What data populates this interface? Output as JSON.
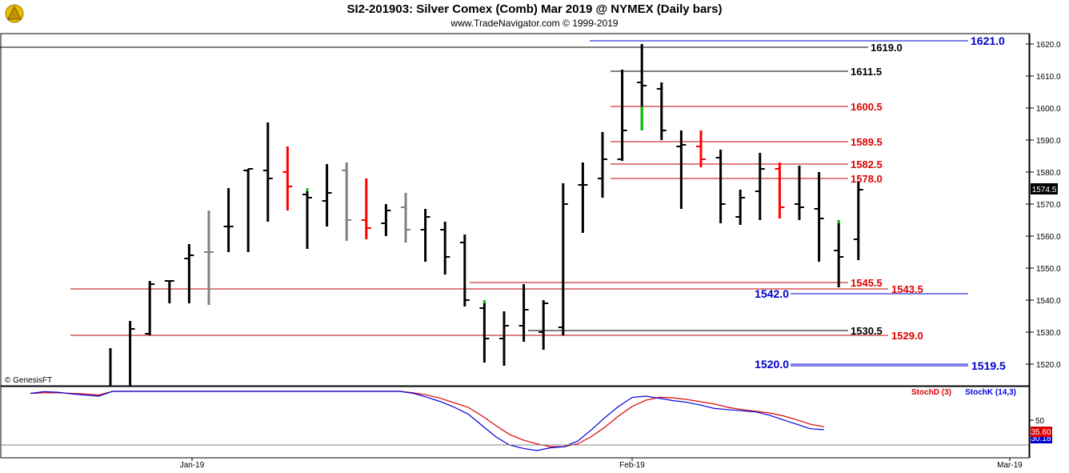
{
  "header": {
    "title": "SI2-201903:  Silver Comex (Comb) Mar 2019 @ NYMEX  (Daily bars)",
    "subtitle": "www.TradeNavigator.com © 1999-2019",
    "watermark": "© GenesisFT"
  },
  "colors": {
    "up_bar": "#000000",
    "down_bar": "#ff0000",
    "neutral_bar": "#808080",
    "limit_bar": "#00cc00",
    "black_line": "#000000",
    "red_line": "#c00000",
    "blue_line": "#0000cc",
    "stochD": "#dd0000",
    "stochK": "#0000dd",
    "last_price_bg": "#000000"
  },
  "chart_data": [
    {
      "type": "ohlc",
      "title": "SI2-201903:  Silver Comex (Comb) Mar 2019 @ NYMEX  (Daily bars)",
      "ylim": [
        1513,
        1625
      ],
      "yticks": [
        1520.0,
        1530.0,
        1540.0,
        1550.0,
        1560.0,
        1570.0,
        1580.0,
        1590.0,
        1600.0,
        1610.0,
        1620.0
      ],
      "xtick_labels": [
        {
          "label": "Jan-19",
          "bar": 8
        },
        {
          "label": "Feb-19",
          "bar": 30
        },
        {
          "label": "Mar-19",
          "bar": 51
        }
      ],
      "last_price": "1574.5",
      "bars": [
        {
          "o": null,
          "h": 1525.0,
          "l": 1513.0,
          "c": null,
          "color": "black"
        },
        {
          "o": 1512.0,
          "h": 1533.5,
          "l": 1512.0,
          "c": 1531.0,
          "color": "black"
        },
        {
          "o": 1529.5,
          "h": 1546.0,
          "l": 1529.0,
          "c": 1545.0,
          "color": "black"
        },
        {
          "o": 1546.0,
          "h": 1546.0,
          "l": 1539.0,
          "c": 1546.0,
          "color": "black"
        },
        {
          "o": 1553.0,
          "h": 1557.5,
          "l": 1539.0,
          "c": 1554.0,
          "color": "black"
        },
        {
          "o": 1555.0,
          "h": 1568.0,
          "l": 1538.5,
          "c": 1555.0,
          "color": "gray"
        },
        {
          "o": 1563.0,
          "h": 1575.0,
          "l": 1555.0,
          "c": 1563.0,
          "color": "black"
        },
        {
          "o": 1580.5,
          "h": 1581.0,
          "l": 1555.0,
          "c": 1581.0,
          "color": "black"
        },
        {
          "o": 1580.5,
          "h": 1595.5,
          "l": 1564.5,
          "c": 1578.0,
          "color": "black"
        },
        {
          "o": 1580.0,
          "h": 1588.0,
          "l": 1568.0,
          "c": 1575.5,
          "color": "red"
        },
        {
          "o": 1573.0,
          "h": 1575.0,
          "l": 1556.0,
          "c": 1572.0,
          "color": "black",
          "high_mark": "green"
        },
        {
          "o": 1571.0,
          "h": 1582.5,
          "l": 1563.0,
          "c": 1573.5,
          "color": "black"
        },
        {
          "o": 1580.5,
          "h": 1583.0,
          "l": 1558.5,
          "c": 1565.0,
          "color": "gray"
        },
        {
          "o": 1565.0,
          "h": 1578.0,
          "l": 1559.0,
          "c": 1562.5,
          "color": "red"
        },
        {
          "o": 1564.0,
          "h": 1570.0,
          "l": 1560.0,
          "c": 1568.0,
          "color": "black"
        },
        {
          "o": 1569.0,
          "h": 1573.5,
          "l": 1558.0,
          "c": 1562.0,
          "color": "gray"
        },
        {
          "o": 1562.0,
          "h": 1568.5,
          "l": 1552.0,
          "c": 1566.0,
          "color": "black"
        },
        {
          "o": 1562.0,
          "h": 1564.5,
          "l": 1548.0,
          "c": 1553.5,
          "color": "black"
        },
        {
          "o": 1558.0,
          "h": 1560.5,
          "l": 1538.0,
          "c": 1540.0,
          "color": "black"
        },
        {
          "o": 1537.5,
          "h": 1540.0,
          "l": 1520.5,
          "c": 1528.0,
          "color": "black",
          "high_mark": "green"
        },
        {
          "o": 1528.0,
          "h": 1536.5,
          "l": 1519.5,
          "c": 1532.0,
          "color": "black"
        },
        {
          "o": 1532.0,
          "h": 1545.0,
          "l": 1527.0,
          "c": 1537.0,
          "color": "black"
        },
        {
          "o": 1530.0,
          "h": 1540.0,
          "l": 1524.5,
          "c": 1539.0,
          "color": "black"
        },
        {
          "o": 1531.5,
          "h": 1576.5,
          "l": 1529.0,
          "c": 1570.0,
          "color": "black"
        },
        {
          "o": 1576.0,
          "h": 1583.0,
          "l": 1561.0,
          "c": 1576.0,
          "color": "black"
        },
        {
          "o": 1578.0,
          "h": 1592.5,
          "l": 1572.0,
          "c": 1584.0,
          "color": "black"
        },
        {
          "o": 1584.0,
          "h": 1612.0,
          "l": 1583.5,
          "c": 1593.0,
          "color": "black"
        },
        {
          "o": 1608.0,
          "h": 1620.0,
          "l": 1593.0,
          "c": 1607.0,
          "color": "black",
          "low_mark_top": 1600.5
        },
        {
          "o": 1606.0,
          "h": 1608.0,
          "l": 1590.0,
          "c": 1593.0,
          "color": "black"
        },
        {
          "o": 1588.0,
          "h": 1593.0,
          "l": 1568.5,
          "c": 1588.5,
          "color": "black"
        },
        {
          "o": 1588.0,
          "h": 1593.0,
          "l": 1581.5,
          "c": 1584.0,
          "color": "red"
        },
        {
          "o": 1584.5,
          "h": 1587.0,
          "l": 1564.0,
          "c": 1570.0,
          "color": "black"
        },
        {
          "o": 1566.0,
          "h": 1574.5,
          "l": 1563.5,
          "c": 1572.0,
          "color": "black"
        },
        {
          "o": 1574.0,
          "h": 1586.0,
          "l": 1565.0,
          "c": 1581.0,
          "color": "black"
        },
        {
          "o": 1581.0,
          "h": 1583.0,
          "l": 1565.5,
          "c": 1569.0,
          "color": "red"
        },
        {
          "o": 1570.0,
          "h": 1582.0,
          "l": 1565.0,
          "c": 1569.0,
          "color": "black"
        },
        {
          "o": 1568.5,
          "h": 1580.0,
          "l": 1552.0,
          "c": 1565.5,
          "color": "black"
        },
        {
          "o": 1555.5,
          "h": 1565.0,
          "l": 1544.0,
          "c": 1553.5,
          "color": "black",
          "high_mark": "green"
        },
        {
          "o": 1559.0,
          "h": 1577.0,
          "l": 1552.5,
          "c": 1574.5,
          "color": "black"
        }
      ],
      "levels": [
        {
          "label": "1621.0",
          "value": 1621.0,
          "color": "blue",
          "label_side": "right"
        },
        {
          "label": "1619.0",
          "value": 1619.0,
          "color": "black",
          "label_side": "right"
        },
        {
          "label": "1611.5",
          "value": 1611.5,
          "color": "black",
          "label_side": "right"
        },
        {
          "label": "1600.5",
          "value": 1600.5,
          "color": "red",
          "label_side": "right"
        },
        {
          "label": "1589.5",
          "value": 1589.5,
          "color": "red",
          "label_side": "right"
        },
        {
          "label": "1582.5",
          "value": 1582.5,
          "color": "red",
          "label_side": "right"
        },
        {
          "label": "1578.0",
          "value": 1578.0,
          "color": "red",
          "label_side": "right"
        },
        {
          "label": "1545.5",
          "value": 1545.5,
          "color": "red",
          "label_side": "right"
        },
        {
          "label": "1543.5",
          "value": 1543.5,
          "color": "red",
          "label_side": "far"
        },
        {
          "label": "1542.0",
          "value": 1542.0,
          "color": "blue",
          "label_side": "left"
        },
        {
          "label": "1530.5",
          "value": 1530.5,
          "color": "black",
          "label_side": "right"
        },
        {
          "label": "1529.0",
          "value": 1529.0,
          "color": "red",
          "label_side": "far"
        },
        {
          "label": "1520.0",
          "value": 1520.0,
          "color": "blue",
          "label_side": "left"
        },
        {
          "label": "1519.5",
          "value": 1519.5,
          "color": "blue",
          "label_side": "far"
        }
      ]
    },
    {
      "type": "line",
      "ylim": [
        -10,
        110
      ],
      "yticks": [
        50
      ],
      "legend": [
        "StochD (3)",
        "StochK (14,3)"
      ],
      "last_values": {
        "stochD": "35.60",
        "stochK": "30.18"
      },
      "series": [
        {
          "name": "StochD (3)",
          "values": [
            95,
            96,
            96,
            95,
            94,
            92,
            99,
            99,
            99,
            99,
            99,
            99,
            99,
            99,
            99,
            99,
            99,
            99,
            99,
            99,
            99,
            99,
            99,
            99,
            99,
            99,
            99,
            99,
            96,
            92,
            86,
            78,
            70,
            55,
            38,
            22,
            12,
            5,
            0,
            0,
            5,
            18,
            35,
            55,
            72,
            83,
            88,
            87,
            84,
            80,
            76,
            70,
            66,
            63,
            60,
            55,
            48,
            40,
            35.6
          ]
        },
        {
          "name": "StochK (14,3)",
          "values": [
            95,
            98,
            97,
            94,
            92,
            90,
            100,
            100,
            100,
            100,
            100,
            100,
            100,
            100,
            100,
            100,
            100,
            100,
            100,
            100,
            100,
            100,
            100,
            100,
            100,
            100,
            100,
            99,
            95,
            88,
            80,
            70,
            58,
            38,
            18,
            3,
            -3,
            -7,
            -2,
            0,
            10,
            30,
            52,
            72,
            88,
            90,
            86,
            82,
            79,
            74,
            68,
            66,
            64,
            62,
            56,
            48,
            40,
            32,
            30.18
          ]
        }
      ]
    }
  ]
}
